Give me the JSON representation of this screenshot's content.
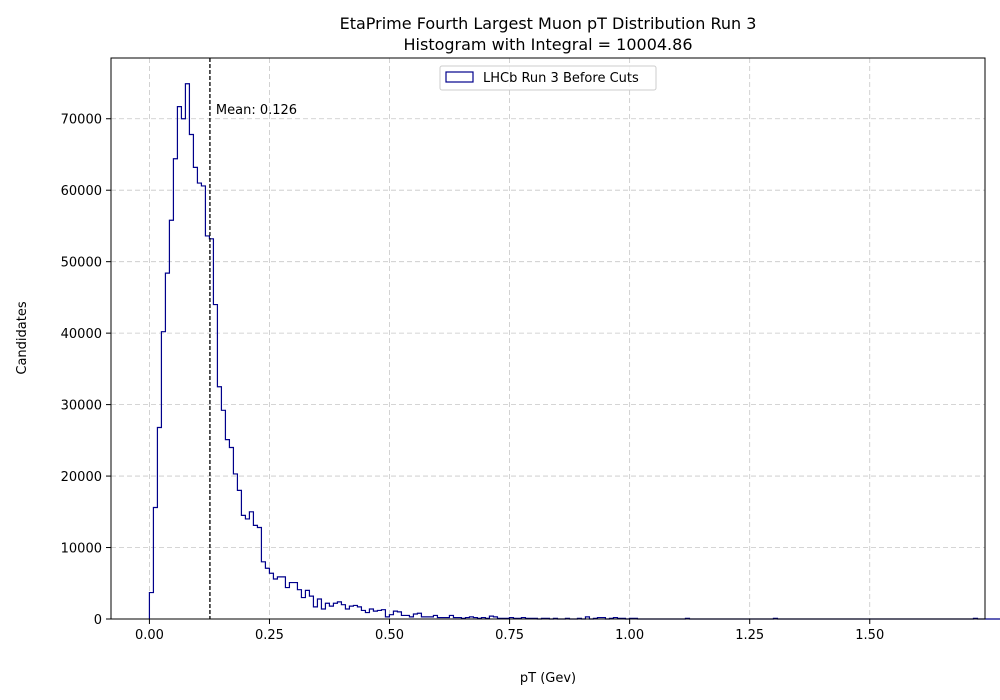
{
  "chart_data": {
    "type": "histogram",
    "title": "EtaPrime Fourth Largest Muon pT Distribution Run 3",
    "subtitle": "Histogram with Integral = 10004.86",
    "xlabel": "pT (Gev)",
    "ylabel": "Candidates",
    "xlim": [
      -0.08,
      1.74
    ],
    "ylim": [
      0,
      78500
    ],
    "xticks": [
      0.0,
      0.25,
      0.5,
      0.75,
      1.0,
      1.25,
      1.5
    ],
    "xtick_labels": [
      "0.00",
      "0.25",
      "0.50",
      "0.75",
      "1.00",
      "1.25",
      "1.50"
    ],
    "yticks": [
      0,
      10000,
      20000,
      30000,
      40000,
      50000,
      60000,
      70000
    ],
    "ytick_labels": [
      "0",
      "10000",
      "20000",
      "30000",
      "40000",
      "50000",
      "60000",
      "70000"
    ],
    "grid": true,
    "legend": {
      "position": "top-center",
      "entries": [
        "LHCb Run 3 Before Cuts"
      ]
    },
    "line_color": "#00008b",
    "mean_line": {
      "x": 0.126,
      "label": "Mean: 0.126",
      "color": "#000000"
    },
    "bin_start": 0.0,
    "bin_width": 0.00833,
    "series": [
      {
        "name": "LHCb Run 3 Before Cuts",
        "values": [
          3700,
          15600,
          26800,
          40200,
          48400,
          55800,
          64400,
          71700,
          70000,
          74900,
          67800,
          63200,
          61000,
          60600,
          53600,
          53200,
          44000,
          32500,
          29200,
          25100,
          24000,
          20300,
          18000,
          14500,
          14000,
          15000,
          13100,
          12800,
          8000,
          7100,
          6400,
          5600,
          5900,
          5900,
          4400,
          5100,
          5100,
          4100,
          3000,
          4000,
          3200,
          1700,
          2800,
          1400,
          2200,
          1800,
          2200,
          2400,
          2000,
          1400,
          1800,
          1900,
          1700,
          1200,
          900,
          1400,
          1100,
          1200,
          1300,
          300,
          600,
          1100,
          1000,
          500,
          500,
          300,
          700,
          800,
          300,
          300,
          300,
          500,
          200,
          200,
          200,
          500,
          200,
          200,
          100,
          200,
          300,
          200,
          100,
          200,
          100,
          400,
          300,
          100,
          100,
          100,
          200,
          100,
          100,
          200,
          100,
          100,
          100,
          0,
          100,
          100,
          0,
          100,
          0,
          0,
          100,
          0,
          0,
          100,
          0,
          300,
          0,
          100,
          200,
          200,
          0,
          100,
          200,
          100,
          100,
          0,
          100,
          100,
          0,
          0,
          0,
          0,
          0,
          0,
          0,
          0,
          0,
          0,
          0,
          0,
          100,
          0,
          0,
          0,
          0,
          0,
          0,
          0,
          0,
          0,
          0,
          0,
          0,
          0,
          0,
          0,
          0,
          0,
          0,
          0,
          0,
          0,
          100,
          0,
          0,
          0,
          0,
          0,
          0,
          0,
          0,
          0,
          0,
          0,
          0,
          0,
          0,
          0,
          0,
          0,
          0,
          0,
          0,
          0,
          0,
          0,
          0,
          0,
          0,
          0,
          0,
          0,
          0,
          0,
          0,
          0,
          0,
          0,
          0,
          0,
          0,
          0,
          0,
          0,
          0,
          0,
          0,
          0,
          0,
          0,
          0,
          0,
          100,
          0,
          0,
          0,
          0,
          0,
          0,
          0,
          0,
          0,
          0,
          0,
          0,
          0,
          0,
          0,
          0,
          0,
          0,
          100
        ]
      }
    ]
  }
}
